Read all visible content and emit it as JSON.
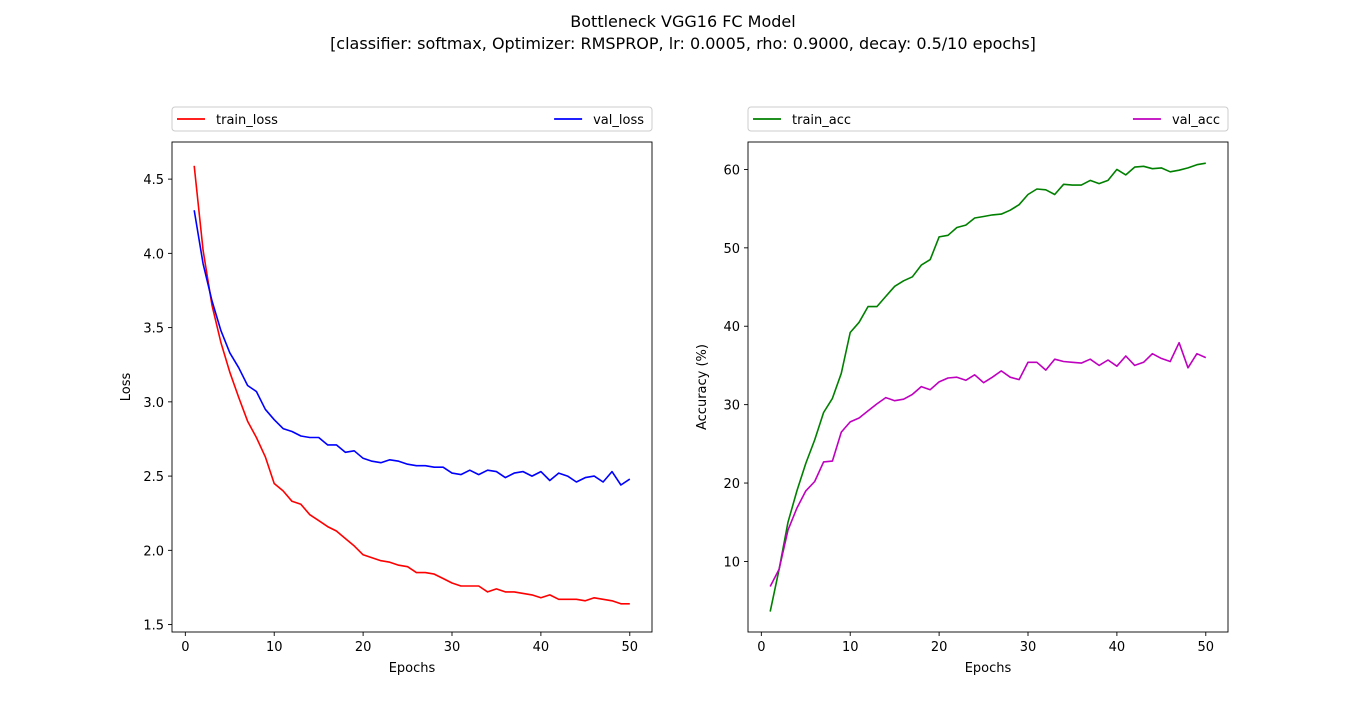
{
  "figure": {
    "title": "Bottleneck VGG16 FC Model",
    "subtitle": "[classifier: softmax, Optimizer: RMSPROP, lr: 0.0005, rho: 0.9000, decay: 0.5/10 epochs]"
  },
  "chart_data": [
    {
      "type": "line",
      "xlabel": "Epochs",
      "ylabel": "Loss",
      "xlim": [
        -1.5,
        52.5
      ],
      "ylim": [
        1.45,
        4.75
      ],
      "xticks": [
        0,
        10,
        20,
        30,
        40,
        50
      ],
      "yticks": [
        1.5,
        2.0,
        2.5,
        3.0,
        3.5,
        4.0,
        4.5
      ],
      "grid": false,
      "legend": "top, above plot (2 columns)",
      "x": [
        1,
        2,
        3,
        4,
        5,
        6,
        7,
        8,
        9,
        10,
        11,
        12,
        13,
        14,
        15,
        16,
        17,
        18,
        19,
        20,
        21,
        22,
        23,
        24,
        25,
        26,
        27,
        28,
        29,
        30,
        31,
        32,
        33,
        34,
        35,
        36,
        37,
        38,
        39,
        40,
        41,
        42,
        43,
        44,
        45,
        46,
        47,
        48,
        49,
        50
      ],
      "series": [
        {
          "name": "train_loss",
          "color": "#ff0000",
          "values": [
            4.59,
            4.02,
            3.65,
            3.4,
            3.2,
            3.03,
            2.87,
            2.76,
            2.63,
            2.45,
            2.4,
            2.33,
            2.31,
            2.24,
            2.2,
            2.16,
            2.13,
            2.08,
            2.03,
            1.97,
            1.95,
            1.93,
            1.92,
            1.9,
            1.89,
            1.85,
            1.85,
            1.84,
            1.81,
            1.78,
            1.76,
            1.76,
            1.76,
            1.72,
            1.74,
            1.72,
            1.72,
            1.71,
            1.7,
            1.68,
            1.7,
            1.67,
            1.67,
            1.67,
            1.66,
            1.68,
            1.67,
            1.66,
            1.64,
            1.64
          ]
        },
        {
          "name": "val_loss",
          "color": "#0000ff",
          "values": [
            4.29,
            3.93,
            3.68,
            3.48,
            3.33,
            3.23,
            3.11,
            3.07,
            2.95,
            2.88,
            2.82,
            2.8,
            2.77,
            2.76,
            2.76,
            2.71,
            2.71,
            2.66,
            2.67,
            2.62,
            2.6,
            2.59,
            2.61,
            2.6,
            2.58,
            2.57,
            2.57,
            2.56,
            2.56,
            2.52,
            2.51,
            2.54,
            2.51,
            2.54,
            2.53,
            2.49,
            2.52,
            2.53,
            2.5,
            2.53,
            2.47,
            2.52,
            2.5,
            2.46,
            2.49,
            2.5,
            2.46,
            2.53,
            2.44,
            2.48
          ]
        }
      ]
    },
    {
      "type": "line",
      "xlabel": "Epochs",
      "ylabel": "Accuracy (%)",
      "xlim": [
        -1.5,
        52.5
      ],
      "ylim": [
        1.0,
        63.5
      ],
      "xticks": [
        0,
        10,
        20,
        30,
        40,
        50
      ],
      "yticks": [
        10,
        20,
        30,
        40,
        50,
        60
      ],
      "grid": false,
      "legend": "top, above plot (2 columns)",
      "x": [
        1,
        2,
        3,
        4,
        5,
        6,
        7,
        8,
        9,
        10,
        11,
        12,
        13,
        14,
        15,
        16,
        17,
        18,
        19,
        20,
        21,
        22,
        23,
        24,
        25,
        26,
        27,
        28,
        29,
        30,
        31,
        32,
        33,
        34,
        35,
        36,
        37,
        38,
        39,
        40,
        41,
        42,
        43,
        44,
        45,
        46,
        47,
        48,
        49,
        50
      ],
      "series": [
        {
          "name": "train_acc",
          "color": "#008000",
          "values": [
            3.6,
            9.0,
            15.0,
            19.0,
            22.5,
            25.5,
            29.0,
            30.8,
            34.0,
            39.2,
            40.5,
            42.5,
            42.5,
            43.8,
            45.1,
            45.8,
            46.3,
            47.8,
            48.5,
            51.4,
            51.6,
            52.6,
            52.9,
            53.8,
            54.0,
            54.2,
            54.3,
            54.8,
            55.5,
            56.8,
            57.5,
            57.4,
            56.8,
            58.1,
            58.0,
            58.0,
            58.6,
            58.2,
            58.6,
            60.0,
            59.3,
            60.3,
            60.4,
            60.1,
            60.2,
            59.7,
            59.9,
            60.2,
            60.6,
            60.8
          ]
        },
        {
          "name": "val_acc",
          "color": "#bf00bf",
          "values": [
            6.8,
            9.0,
            14.0,
            16.8,
            19.0,
            20.2,
            22.7,
            22.8,
            26.5,
            27.8,
            28.3,
            29.2,
            30.1,
            30.9,
            30.5,
            30.7,
            31.3,
            32.3,
            31.9,
            32.9,
            33.4,
            33.5,
            33.1,
            33.8,
            32.8,
            33.5,
            34.3,
            33.5,
            33.2,
            35.4,
            35.4,
            34.4,
            35.8,
            35.5,
            35.4,
            35.3,
            35.8,
            35.0,
            35.7,
            34.9,
            36.2,
            35.0,
            35.4,
            36.5,
            35.9,
            35.5,
            37.9,
            34.7,
            36.5,
            36.0
          ]
        }
      ]
    }
  ]
}
